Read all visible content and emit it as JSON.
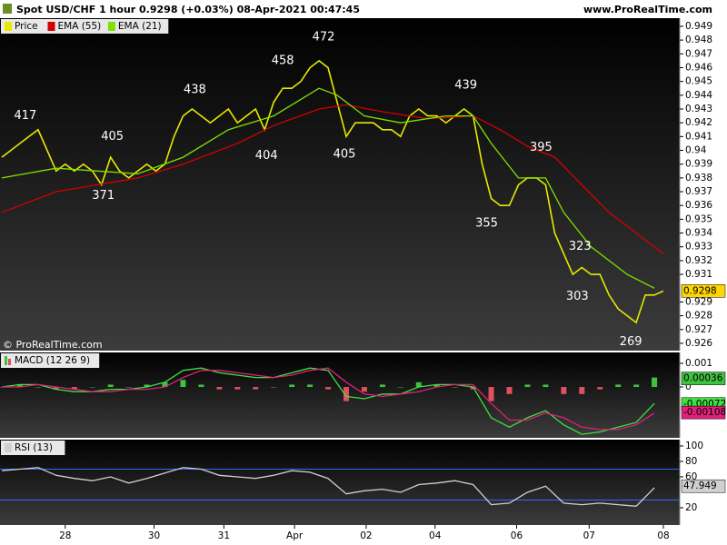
{
  "header": {
    "title": "Spot USD/CHF 1 hour 0.9298 (+0.03%) 08-Apr-2021 00:47:45",
    "site": "www.ProRealTime.com",
    "copyright": "© ProRealTime.com"
  },
  "chart_data": [
    {
      "type": "line",
      "xlim": [
        -0.2,
        74.8
      ],
      "ylim": [
        0.92547,
        0.94959
      ],
      "yticks": [
        0.926,
        0.927,
        0.928,
        0.929,
        0.931,
        0.932,
        0.933,
        0.934,
        0.935,
        0.936,
        0.937,
        0.938,
        0.939,
        0.94,
        0.941,
        0.942,
        0.943,
        0.944,
        0.945,
        0.946,
        0.947,
        0.948,
        0.949
      ],
      "series": [
        {
          "name": "Price",
          "color": "#e8e800",
          "x": [
            0,
            1,
            2,
            3,
            4,
            5,
            6,
            7,
            8,
            9,
            10,
            11,
            12,
            13,
            14,
            15,
            16,
            17,
            18,
            19,
            20,
            21,
            22,
            23,
            24,
            25,
            26,
            27,
            28,
            29,
            30,
            31,
            32,
            33,
            34,
            35,
            36,
            37,
            38,
            39,
            40,
            41,
            42,
            43,
            44,
            45,
            46,
            47,
            48,
            49,
            50,
            51,
            52,
            53,
            54,
            55,
            56,
            57,
            58,
            59,
            60,
            61,
            62,
            63,
            64,
            65,
            66,
            67,
            68,
            69,
            70,
            71,
            72,
            73
          ],
          "values": [
            0.9395,
            0.94,
            0.9405,
            0.941,
            0.9415,
            0.94,
            0.9385,
            0.939,
            0.9385,
            0.939,
            0.9385,
            0.9375,
            0.9395,
            0.9385,
            0.938,
            0.9385,
            0.939,
            0.9385,
            0.939,
            0.941,
            0.9425,
            0.943,
            0.9425,
            0.942,
            0.9425,
            0.943,
            0.942,
            0.9425,
            0.943,
            0.9415,
            0.9435,
            0.9445,
            0.9445,
            0.945,
            0.946,
            0.9465,
            0.946,
            0.9435,
            0.941,
            0.942,
            0.942,
            0.942,
            0.9415,
            0.9415,
            0.941,
            0.9425,
            0.943,
            0.9425,
            0.9425,
            0.942,
            0.9425,
            0.943,
            0.9425,
            0.939,
            0.9365,
            0.936,
            0.936,
            0.9375,
            0.938,
            0.938,
            0.9375,
            0.934,
            0.9325,
            0.931,
            0.9315,
            0.931,
            0.931,
            0.9295,
            0.9285,
            0.928,
            0.9275,
            0.9295,
            0.9295,
            0.9298
          ]
        },
        {
          "name": "EMA (55)",
          "color": "#d40000",
          "x": [
            0,
            6,
            15,
            20,
            26,
            30,
            35,
            38,
            42,
            47,
            52,
            55,
            58,
            61,
            64,
            67,
            70,
            73
          ],
          "values": [
            0.9355,
            0.937,
            0.938,
            0.939,
            0.9405,
            0.9418,
            0.943,
            0.9433,
            0.9428,
            0.9423,
            0.9425,
            0.9415,
            0.9403,
            0.9395,
            0.9375,
            0.9355,
            0.934,
            0.9325
          ]
        },
        {
          "name": "EMA (21)",
          "color": "#80e000",
          "x": [
            0,
            6,
            15,
            20,
            25,
            30,
            35,
            37,
            40,
            44,
            49,
            52,
            54,
            57,
            60,
            62,
            65,
            69,
            72
          ],
          "values": [
            0.938,
            0.9387,
            0.9383,
            0.9395,
            0.9415,
            0.9425,
            0.9445,
            0.944,
            0.9425,
            0.942,
            0.9425,
            0.9425,
            0.9405,
            0.938,
            0.938,
            0.9355,
            0.933,
            0.931,
            0.93
          ]
        }
      ],
      "annotations": [
        {
          "text": "417",
          "x": 2.6,
          "y": 0.9425
        },
        {
          "text": "405",
          "x": 12.2,
          "y": 0.941
        },
        {
          "text": "371",
          "x": 11.2,
          "y": 0.9367
        },
        {
          "text": "438",
          "x": 21.3,
          "y": 0.9444
        },
        {
          "text": "404",
          "x": 29.2,
          "y": 0.9396
        },
        {
          "text": "458",
          "x": 31.0,
          "y": 0.9465
        },
        {
          "text": "472",
          "x": 35.5,
          "y": 0.9482
        },
        {
          "text": "405",
          "x": 37.8,
          "y": 0.9397
        },
        {
          "text": "439",
          "x": 51.2,
          "y": 0.9447
        },
        {
          "text": "395",
          "x": 59.5,
          "y": 0.9402
        },
        {
          "text": "355",
          "x": 53.5,
          "y": 0.9347
        },
        {
          "text": "323",
          "x": 63.8,
          "y": 0.933
        },
        {
          "text": "303",
          "x": 63.5,
          "y": 0.9294
        },
        {
          "text": "269",
          "x": 69.4,
          "y": 0.9261
        }
      ],
      "last_values": [
        {
          "value": 0.9298,
          "color": "#ffd700"
        }
      ]
    },
    {
      "type": "combo",
      "title": "MACD (12 26 9)",
      "xlim": [
        -0.2,
        74.8
      ],
      "ylim": [
        -0.00215,
        0.00146
      ],
      "yticks": [
        0.001,
        0
      ],
      "series": [
        {
          "kind": "bar",
          "up_color": "#40c040",
          "down_color": "#e05060",
          "x": [
            0,
            2,
            4,
            6,
            8,
            10,
            12,
            14,
            16,
            18,
            20,
            22,
            24,
            26,
            28,
            30,
            32,
            34,
            36,
            38,
            40,
            42,
            44,
            46,
            48,
            50,
            52,
            54,
            56,
            58,
            60,
            62,
            64,
            66,
            68,
            70,
            72
          ],
          "values": [
            0,
            0.0001,
            0,
            -0.0001,
            -0.0001,
            0,
            0.0001,
            0,
            0.0001,
            0.0002,
            0.0003,
            0.0001,
            -0.0001,
            -0.0001,
            -0.0001,
            0,
            0.0001,
            0.0001,
            -0.0001,
            -0.0006,
            -0.0002,
            0.0001,
            0,
            0.0002,
            0.0001,
            0,
            -0.0001,
            -0.0006,
            -0.0003,
            0.0001,
            0.0001,
            -0.0003,
            -0.0003,
            -0.0001,
            0.0001,
            0.0001,
            0.0004
          ]
        },
        {
          "kind": "line",
          "color": "#40e040",
          "x": [
            0,
            2,
            4,
            6,
            8,
            10,
            12,
            14,
            16,
            18,
            20,
            22,
            24,
            26,
            28,
            30,
            32,
            34,
            36,
            38,
            40,
            42,
            44,
            46,
            48,
            50,
            52,
            54,
            56,
            58,
            60,
            62,
            64,
            66,
            68,
            70,
            72
          ],
          "values": [
            0,
            0.0001,
            0.0001,
            -0.0001,
            -0.0002,
            -0.0002,
            -0.0001,
            -0.0001,
            0,
            0.0002,
            0.0007,
            0.0008,
            0.0006,
            0.0005,
            0.0004,
            0.0004,
            0.0006,
            0.0008,
            0.0007,
            -0.0004,
            -0.0005,
            -0.0003,
            -0.0003,
            0,
            0.0001,
            0.0001,
            0,
            -0.0013,
            -0.0017,
            -0.0013,
            -0.001,
            -0.0016,
            -0.002,
            -0.0019,
            -0.0017,
            -0.0015,
            -0.0007
          ]
        },
        {
          "kind": "line",
          "color": "#e0207a",
          "x": [
            0,
            2,
            4,
            6,
            8,
            10,
            12,
            14,
            16,
            18,
            20,
            22,
            24,
            26,
            28,
            30,
            32,
            34,
            36,
            38,
            40,
            42,
            44,
            46,
            48,
            50,
            52,
            54,
            56,
            58,
            60,
            62,
            64,
            66,
            68,
            70,
            72
          ],
          "values": [
            0,
            0,
            0.0001,
            0,
            -0.0001,
            -0.0002,
            -0.0002,
            -0.0001,
            -0.0001,
            0,
            0.0004,
            0.0007,
            0.0007,
            0.0006,
            0.0005,
            0.0004,
            0.0005,
            0.0007,
            0.0008,
            0.0002,
            -0.0003,
            -0.0004,
            -0.0003,
            -0.0002,
            0,
            0.0001,
            0.0001,
            -0.0007,
            -0.0014,
            -0.0014,
            -0.0011,
            -0.0013,
            -0.0017,
            -0.0018,
            -0.0018,
            -0.0016,
            -0.0011
          ]
        }
      ],
      "last_values": [
        {
          "value": 0.00036,
          "color": "#40c040"
        },
        {
          "value": -0.00072,
          "color": "#40e040"
        },
        {
          "value": -0.00108,
          "color": "#e0207a"
        }
      ]
    },
    {
      "type": "line",
      "xlim": [
        -0.2,
        74.8
      ],
      "ylim": [
        -2.4,
        108.2
      ],
      "yticks": [
        100,
        80,
        60,
        20
      ],
      "levels": [
        70,
        30
      ],
      "level_color": "#3366ff",
      "xticks": [
        {
          "value": 7,
          "label": "28"
        },
        {
          "value": 16.8,
          "label": "30"
        },
        {
          "value": 24.5,
          "label": "31"
        },
        {
          "value": 32.3,
          "label": "Apr"
        },
        {
          "value": 40.2,
          "label": "02"
        },
        {
          "value": 47.8,
          "label": "04"
        },
        {
          "value": 56.8,
          "label": "06"
        },
        {
          "value": 64.8,
          "label": "07"
        },
        {
          "value": 73,
          "label": "08"
        }
      ],
      "series": [
        {
          "name": "RSI (13)",
          "color": "#d0d0d0",
          "x": [
            0,
            2,
            4,
            6,
            8,
            10,
            12,
            14,
            16,
            18,
            20,
            22,
            24,
            26,
            28,
            30,
            32,
            34,
            36,
            38,
            40,
            42,
            44,
            46,
            48,
            50,
            52,
            54,
            56,
            58,
            60,
            62,
            64,
            66,
            68,
            70,
            72
          ],
          "values": [
            68,
            70,
            72,
            62,
            58,
            55,
            60,
            52,
            58,
            65,
            72,
            70,
            62,
            60,
            58,
            62,
            68,
            66,
            58,
            38,
            42,
            44,
            40,
            50,
            52,
            55,
            50,
            24,
            26,
            40,
            48,
            26,
            24,
            26,
            24,
            22,
            46
          ]
        }
      ],
      "last_values": [
        {
          "value": 47.949,
          "color": "#d0d0d0"
        }
      ]
    }
  ]
}
